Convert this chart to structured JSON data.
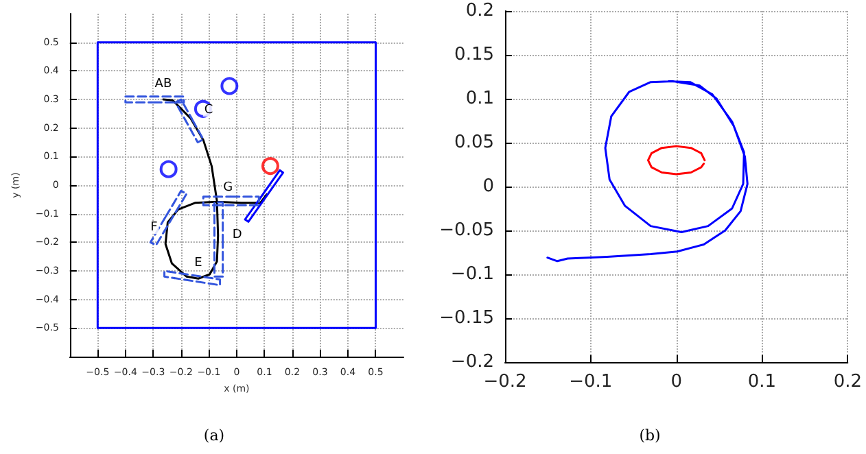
{
  "chart_data": [
    {
      "type": "line",
      "xlabel": "x (m)",
      "ylabel": "y (m)",
      "xlim": [
        -0.6,
        0.6
      ],
      "ylim": [
        -0.6,
        0.6
      ],
      "xticks": [
        -0.5,
        -0.4,
        -0.3,
        -0.2,
        -0.1,
        0,
        0.1,
        0.2,
        0.3,
        0.4,
        0.5
      ],
      "yticks": [
        -0.5,
        -0.4,
        -0.3,
        -0.2,
        -0.1,
        0,
        0.1,
        0.2,
        0.3,
        0.4,
        0.5
      ],
      "grid": true,
      "series": [
        {
          "color": "#0000ff",
          "x": [
            0,
            0.5,
            0.5,
            -0.5,
            -0.5,
            -0.002
          ],
          "values": [
            -0.5,
            -0.5,
            0.5,
            0.5,
            -0.5,
            -0.5
          ]
        },
        {
          "color": "#000000",
          "x": [
            -0.264,
            -0.23,
            -0.165,
            -0.12,
            -0.09,
            -0.071,
            -0.067,
            -0.071,
            -0.097,
            -0.138,
            -0.18,
            -0.233,
            -0.256,
            -0.248,
            -0.21,
            -0.15,
            -0.071,
            0.017,
            0.085,
            0.108
          ],
          "values": [
            0.3,
            0.297,
            0.233,
            0.158,
            0.067,
            -0.055,
            -0.176,
            -0.267,
            -0.312,
            -0.327,
            -0.32,
            -0.274,
            -0.206,
            -0.13,
            -0.085,
            -0.062,
            -0.058,
            -0.062,
            -0.062,
            -0.032
          ]
        },
        {
          "color": "#0000ff",
          "x": [
            0.092,
            0.155,
            0.167,
            0.042,
            0.03,
            0.09
          ],
          "values": [
            -0.035,
            0.052,
            0.044,
            -0.128,
            -0.12,
            -0.038
          ]
        },
        {
          "color": "#3355dd",
          "line_style": "dashed",
          "x": [
            -0.3,
            -0.19,
            -0.19,
            -0.4,
            -0.4,
            -0.302
          ],
          "values": [
            0.29,
            0.29,
            0.31,
            0.31,
            0.29,
            0.29
          ]
        },
        {
          "color": "#3355dd",
          "line_style": "dashed",
          "x": [
            -0.16,
            -0.12,
            -0.14,
            -0.22,
            -0.2,
            -0.161
          ],
          "values": [
            0.23,
            0.16,
            0.15,
            0.29,
            0.3,
            0.232
          ]
        },
        {
          "color": "#3355dd",
          "line_style": "dashed",
          "x": [
            -0.02,
            0.08,
            0.08,
            -0.12,
            -0.12,
            -0.022
          ],
          "values": [
            -0.04,
            -0.04,
            -0.07,
            -0.07,
            -0.04,
            -0.04
          ]
        },
        {
          "color": "#3355dd",
          "line_style": "dashed",
          "x": [
            -0.05,
            -0.05,
            -0.08,
            -0.08,
            -0.05,
            -0.05
          ],
          "values": [
            -0.19,
            -0.32,
            -0.32,
            -0.06,
            -0.06,
            -0.188
          ]
        },
        {
          "color": "#3355dd",
          "line_style": "dashed",
          "x": [
            -0.16,
            -0.06,
            -0.06,
            -0.26,
            -0.26,
            -0.162
          ],
          "values": [
            -0.315,
            -0.33,
            -0.35,
            -0.32,
            -0.3,
            -0.315
          ]
        },
        {
          "color": "#3355dd",
          "line_style": "dashed",
          "x": [
            -0.255,
            -0.2,
            -0.18,
            -0.29,
            -0.31,
            -0.257
          ],
          "values": [
            -0.11,
            -0.02,
            -0.03,
            -0.21,
            -0.2,
            -0.113
          ]
        },
        {
          "type": "scatter",
          "color": "#0000ff",
          "marker": "circle",
          "x": [
            -0.026,
            -0.121,
            -0.245
          ],
          "values": [
            0.347,
            0.267,
            0.056
          ]
        },
        {
          "type": "scatter",
          "color": "#ff0000",
          "marker": "circle",
          "x": [
            0.121
          ],
          "values": [
            0.067
          ]
        }
      ],
      "annotations": [
        {
          "text": "AB",
          "x": -0.264,
          "y": 0.3
        },
        {
          "text": "C",
          "x": -0.165,
          "y": 0.233
        },
        {
          "text": "G",
          "x": -0.071,
          "y": -0.058
        },
        {
          "text": "D",
          "x": -0.067,
          "y": -0.176
        },
        {
          "text": "E",
          "x": -0.138,
          "y": -0.327
        },
        {
          "text": "F",
          "x": -0.248,
          "y": -0.13
        },
        "(a)"
      ]
    },
    {
      "type": "line",
      "xlim": [
        -0.2,
        0.2
      ],
      "ylim": [
        -0.2,
        0.2
      ],
      "xticks": [
        -0.2,
        -0.1,
        0,
        0.1,
        0.2
      ],
      "yticks": [
        -0.2,
        -0.15,
        -0.1,
        -0.05,
        0,
        0.05,
        0.1,
        0.15,
        0.2
      ],
      "grid": true,
      "series": [
        {
          "color": "#0000ff",
          "x": [
            -0.1505,
            -0.139,
            -0.127,
            -0.081,
            -0.03,
            0.001,
            0.032,
            0.057,
            0.075,
            0.083,
            0.08,
            0.067,
            0.047,
            0.027,
            -0.004,
            -0.03,
            -0.055,
            -0.076,
            -0.083,
            -0.078,
            -0.06,
            -0.03,
            0.006,
            0.037,
            0.065,
            0.078,
            0.079,
            0.065,
            0.042,
            0.016,
            -0.009
          ],
          "values": [
            -0.081,
            -0.085,
            -0.082,
            -0.08,
            -0.077,
            -0.074,
            -0.066,
            -0.05,
            -0.028,
            0.003,
            0.034,
            0.069,
            0.1,
            0.115,
            0.12,
            0.119,
            0.108,
            0.08,
            0.044,
            0.008,
            -0.022,
            -0.045,
            -0.052,
            -0.045,
            -0.025,
            0.003,
            0.039,
            0.074,
            0.105,
            0.119,
            0.12
          ]
        },
        {
          "color": "#ff0000",
          "x": [
            0.033,
            0.029,
            0.017,
            0,
            -0.017,
            -0.029,
            -0.033,
            -0.029,
            -0.017,
            0,
            0.017,
            0.029,
            0.032
          ],
          "values": [
            0.03,
            0.038,
            0.044,
            0.046,
            0.044,
            0.038,
            0.03,
            0.022,
            0.016,
            0.014,
            0.016,
            0.022,
            0.026
          ]
        }
      ],
      "annotations": [
        "(b)"
      ]
    }
  ]
}
